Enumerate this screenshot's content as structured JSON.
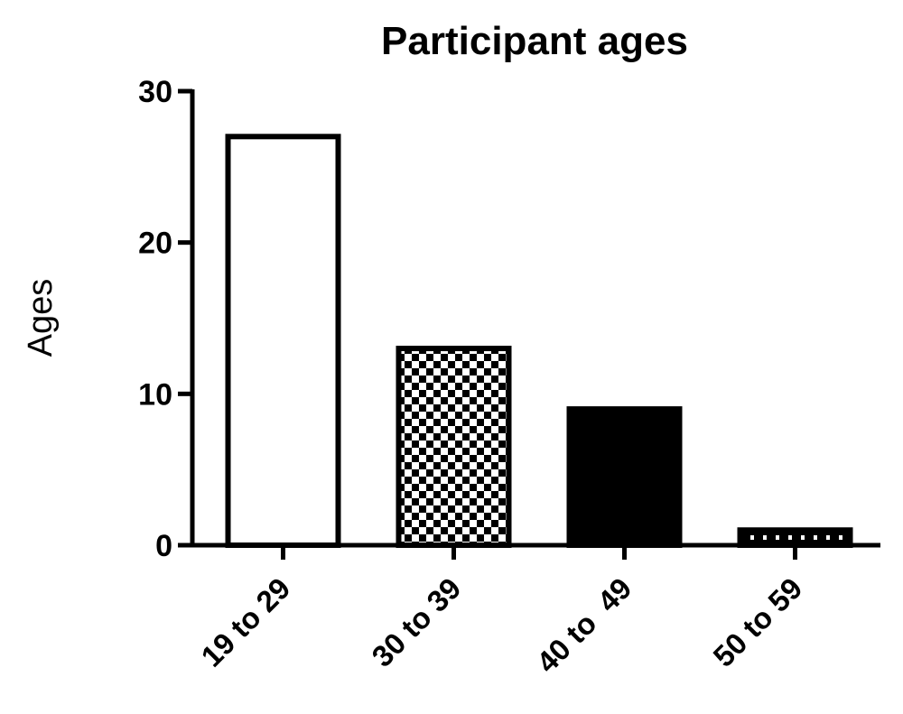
{
  "chart_data": {
    "type": "bar",
    "title": "Participant ages",
    "ylabel": "Ages",
    "xlabel": "",
    "categories": [
      "19 to 29",
      "30 to 39",
      "40 to  49",
      "50 to 59"
    ],
    "values": [
      27,
      13,
      9,
      1
    ],
    "ylim": [
      0,
      30
    ],
    "yticks": [
      0,
      10,
      20,
      30
    ],
    "grid": false,
    "bar_fills": [
      "white",
      "checkerboard",
      "solid-black",
      "dotted"
    ],
    "colors": {
      "stroke": "#000000",
      "fill_dark": "#000000",
      "fill_light": "#ffffff"
    }
  }
}
